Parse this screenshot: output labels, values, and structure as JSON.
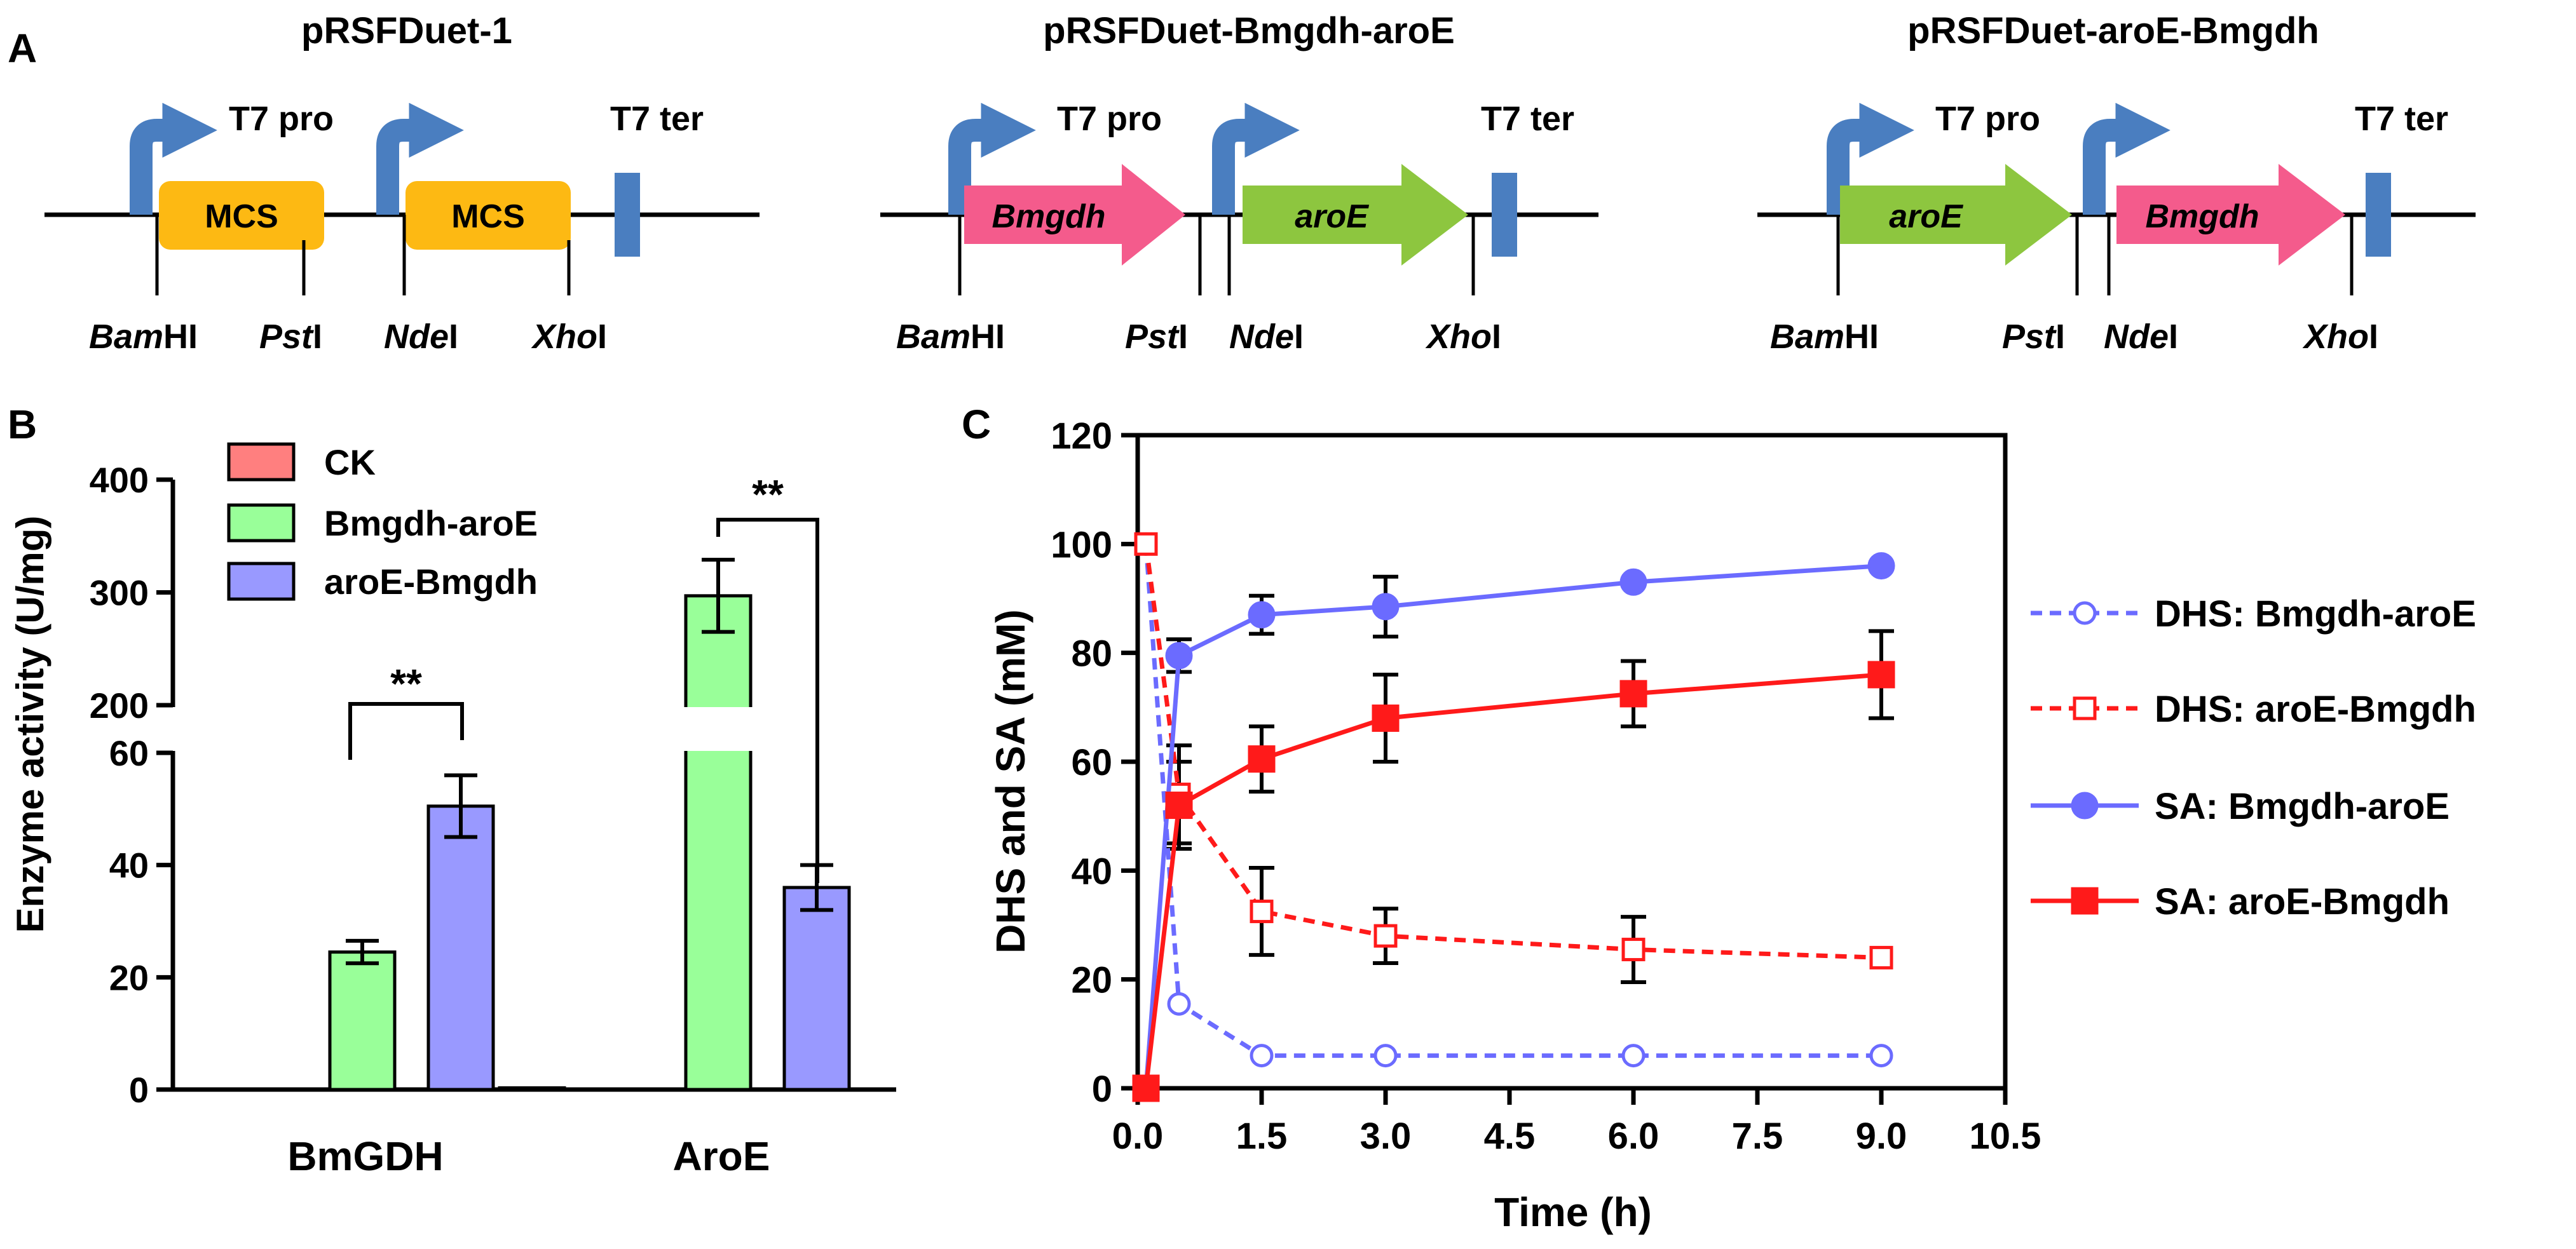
{
  "panel_labels": {
    "a": "A",
    "b": "B",
    "c": "C"
  },
  "constructs": [
    {
      "title": "pRSFDuet-1",
      "promoter": "T7 pro",
      "terminator": "T7 ter",
      "genes": [
        "MCS",
        "MCS"
      ],
      "sites": [
        {
          "it": "Bam",
          "rest": "HI"
        },
        {
          "it": "Pst",
          "rest": "I"
        },
        {
          "it": "Nde",
          "rest": "I"
        },
        {
          "it": "Xho",
          "rest": "I"
        }
      ]
    },
    {
      "title": "pRSFDuet-Bmgdh-aroE",
      "promoter": "T7 pro",
      "terminator": "T7 ter",
      "genes": [
        "Bmgdh",
        "aroE"
      ],
      "sites": [
        {
          "it": "Bam",
          "rest": "HI"
        },
        {
          "it": "Pst",
          "rest": "I"
        },
        {
          "it": "Nde",
          "rest": "I"
        },
        {
          "it": "Xho",
          "rest": "I"
        }
      ]
    },
    {
      "title": "pRSFDuet-aroE-Bmgdh",
      "promoter": "T7 pro",
      "terminator": "T7 ter",
      "genes": [
        "aroE",
        "Bmgdh"
      ],
      "sites": [
        {
          "it": "Bam",
          "rest": "HI"
        },
        {
          "it": "Pst",
          "rest": "I"
        },
        {
          "it": "Nde",
          "rest": "I"
        },
        {
          "it": "Xho",
          "rest": "I"
        }
      ]
    }
  ],
  "colors": {
    "mcs": "#FDB913",
    "bmgdh": "#F45B8C",
    "aroe": "#8DC63F",
    "promoter": "#4A7EC0",
    "terminator": "#4A7EC0",
    "ck": "#FF7F7F",
    "bmgdh_aroe": "#99FF99",
    "aroe_bmgdh": "#9999FF",
    "line_blue": "#6B6BFF",
    "line_red": "#FF1A1A"
  },
  "chart_data": [
    {
      "type": "bar",
      "categories": [
        "BmGDH",
        "AroE"
      ],
      "series": [
        {
          "name": "CK",
          "values": [
            0,
            0.3
          ]
        },
        {
          "name": "Bmgdh-aroE",
          "values": [
            24.5,
            297
          ],
          "errors": [
            2,
            32
          ]
        },
        {
          "name": "aroE-Bmgdh",
          "values": [
            50.5,
            36
          ],
          "errors": [
            5.5,
            4
          ]
        }
      ],
      "ylabel": "Enzyme activity (U/mg)",
      "y_break": {
        "lower": [
          0,
          60
        ],
        "upper": [
          200,
          400
        ]
      },
      "yticks": [
        "0",
        "20",
        "40",
        "60",
        "200",
        "300",
        "400"
      ],
      "significance": [
        "**",
        "**"
      ],
      "legend": "top-left"
    },
    {
      "type": "line",
      "xlabel": "Time (h)",
      "ylabel": "DHS and SA (mM)",
      "xlim": [
        0,
        10.5
      ],
      "ylim": [
        0,
        120
      ],
      "xticks": [
        "0.0",
        "1.5",
        "3.0",
        "4.5",
        "6.0",
        "7.5",
        "9.0",
        "10.5"
      ],
      "yticks": [
        "0",
        "20",
        "40",
        "60",
        "80",
        "100",
        "120"
      ],
      "x": [
        0.1,
        0.5,
        1.5,
        3.0,
        6.0,
        9.0
      ],
      "series": [
        {
          "name": "DHS: Bmgdh-aroE",
          "values": [
            100,
            15.5,
            6,
            6,
            6,
            6
          ],
          "errors": [
            0,
            0,
            0,
            0,
            0,
            0
          ]
        },
        {
          "name": "DHS: aroE-Bmgdh",
          "values": [
            100,
            54,
            32.5,
            28,
            25.5,
            24
          ],
          "errors": [
            0,
            9,
            8,
            5,
            6,
            0
          ]
        },
        {
          "name": "SA: Bmgdh-aroE",
          "values": [
            0,
            79.5,
            87,
            88.5,
            93,
            96
          ],
          "errors": [
            0,
            3,
            3.5,
            5.5,
            0,
            0
          ]
        },
        {
          "name": "SA: aroE-Bmgdh",
          "values": [
            0,
            52,
            60.5,
            68,
            72.5,
            76
          ],
          "errors": [
            0,
            8,
            6,
            8,
            6,
            8
          ]
        }
      ],
      "legend": "right"
    }
  ]
}
